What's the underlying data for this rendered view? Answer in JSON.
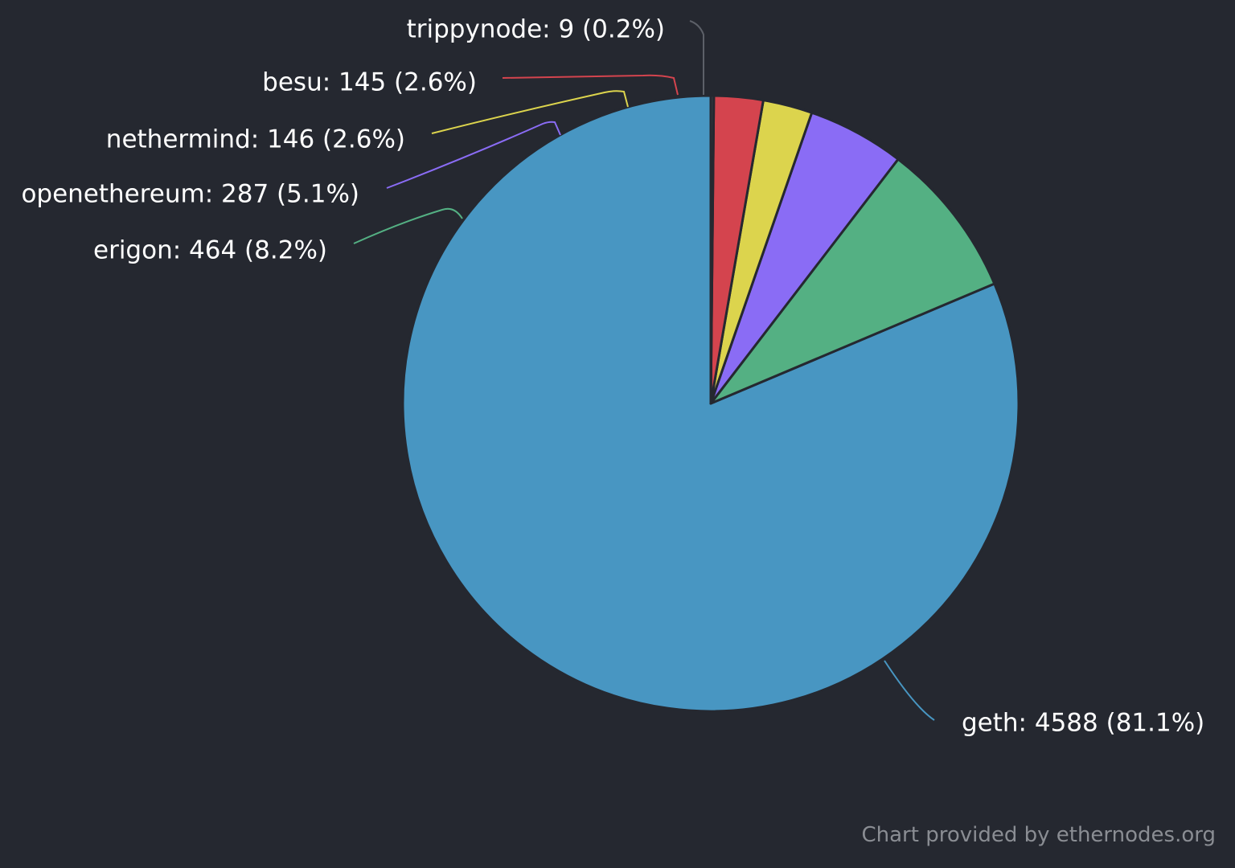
{
  "chart_data": {
    "type": "pie",
    "start_angle_deg": 0,
    "direction": "counterclockwise",
    "slices": [
      {
        "name": "geth",
        "value": 4588,
        "percent": "81.1%",
        "color": "#4896c2",
        "label": "geth: 4588 (81.1%)"
      },
      {
        "name": "erigon",
        "value": 464,
        "percent": "8.2%",
        "color": "#54b083",
        "label": "erigon: 464 (8.2%)"
      },
      {
        "name": "openethereum",
        "value": 287,
        "percent": "5.1%",
        "color": "#8a6cf5",
        "label": "openethereum: 287 (5.1%)"
      },
      {
        "name": "nethermind",
        "value": 146,
        "percent": "2.6%",
        "color": "#dcd44d",
        "label": "nethermind: 146 (2.6%)"
      },
      {
        "name": "besu",
        "value": 145,
        "percent": "2.6%",
        "color": "#d4444e",
        "label": "besu: 145 (2.6%)"
      },
      {
        "name": "trippynode",
        "value": 9,
        "percent": "0.2%",
        "color": "#3b3f47",
        "label": "trippynode: 9 (0.2%)"
      }
    ]
  },
  "colors": {
    "background": "#252830",
    "slice_border": "#252830",
    "label_text": "#ffffff",
    "credit_text": "#8a8d93"
  },
  "credit": "Chart provided by ethernodes.org"
}
